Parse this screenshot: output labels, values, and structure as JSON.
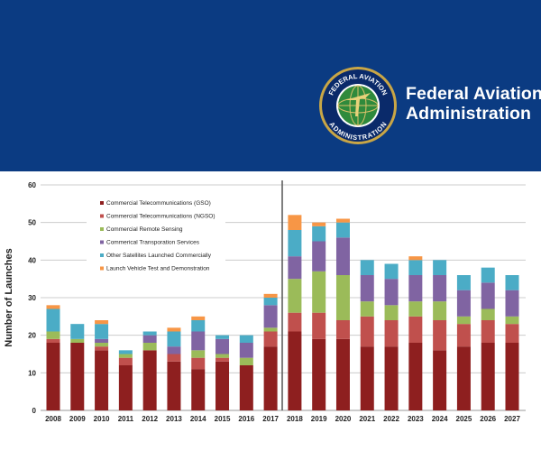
{
  "header": {
    "title_line1": "Federal Aviation",
    "title_line2": "Administration",
    "seal_text_top": "FEDERAL AVIATION",
    "seal_text_bottom": "ADMINISTRATION",
    "background": "#0b3b82"
  },
  "chart_data": {
    "type": "bar",
    "stacked": true,
    "title": "",
    "xlabel": "",
    "ylabel": "Number of Launches",
    "ylim": [
      0,
      60
    ],
    "yticks": [
      0,
      10,
      20,
      30,
      40,
      50,
      60
    ],
    "grid": true,
    "legend_position": "top-left",
    "divider_between": [
      "2017",
      "2018"
    ],
    "categories": [
      "2008",
      "2009",
      "2010",
      "2011",
      "2012",
      "2013",
      "2014",
      "2015",
      "2016",
      "2017",
      "2018",
      "2019",
      "2020",
      "2021",
      "2022",
      "2023",
      "2024",
      "2025",
      "2026",
      "2027"
    ],
    "series": [
      {
        "name": "Commercial Telecommunications (GSO)",
        "color": "#8e1f1f",
        "values": [
          18,
          18,
          16,
          12,
          16,
          13,
          11,
          13,
          12,
          17,
          21,
          19,
          19,
          17,
          17,
          18,
          16,
          17,
          18,
          18
        ]
      },
      {
        "name": "Commercial Telecommunications (NGSO)",
        "color": "#c0504d",
        "values": [
          1,
          0,
          1,
          2,
          0,
          2,
          3,
          1,
          0,
          4,
          5,
          7,
          5,
          8,
          7,
          7,
          8,
          6,
          6,
          5
        ]
      },
      {
        "name": "Commercial Remote Sensing",
        "color": "#9bbb59",
        "values": [
          2,
          1,
          1,
          1,
          2,
          0,
          2,
          1,
          2,
          1,
          9,
          11,
          12,
          4,
          4,
          4,
          5,
          2,
          3,
          2
        ]
      },
      {
        "name": "Commerical Transporation Services",
        "color": "#8064a2",
        "values": [
          0,
          0,
          1,
          0,
          2,
          2,
          5,
          4,
          4,
          6,
          6,
          8,
          10,
          7,
          7,
          7,
          7,
          7,
          7,
          7
        ]
      },
      {
        "name": "Other Satellites Launched Commercially",
        "color": "#4bacc6",
        "values": [
          6,
          4,
          4,
          1,
          1,
          4,
          3,
          1,
          2,
          2,
          7,
          4,
          4,
          4,
          4,
          4,
          4,
          4,
          4,
          4
        ]
      },
      {
        "name": "Launch Vehicle Test and Demonstration",
        "color": "#f79646",
        "values": [
          1,
          0,
          1,
          0,
          0,
          1,
          1,
          0,
          0,
          1,
          4,
          1,
          1,
          0,
          0,
          1,
          0,
          0,
          0,
          0
        ]
      }
    ]
  }
}
